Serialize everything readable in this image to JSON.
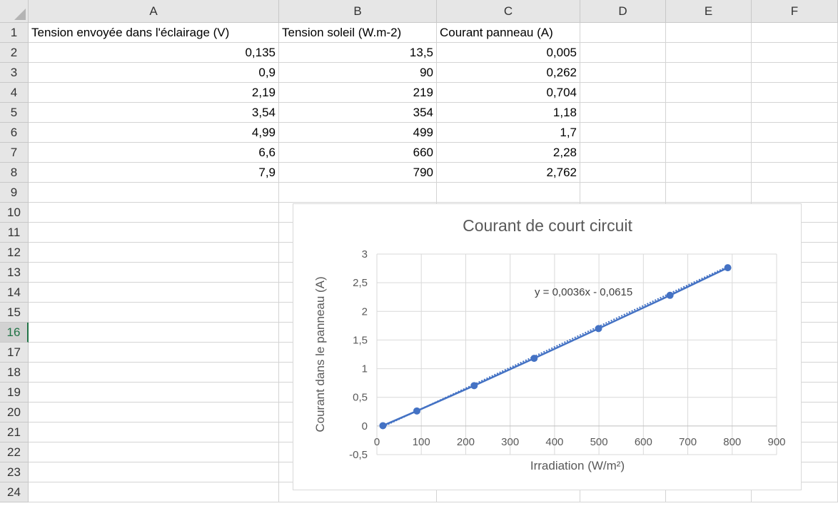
{
  "sheet": {
    "columns": [
      "A",
      "B",
      "C",
      "D",
      "E",
      "F"
    ],
    "rows": [
      "1",
      "2",
      "3",
      "4",
      "5",
      "6",
      "7",
      "8",
      "9",
      "10",
      "11",
      "12",
      "13",
      "14",
      "15",
      "16",
      "17",
      "18",
      "19",
      "20",
      "21",
      "22",
      "23",
      "24"
    ],
    "active_row": "16",
    "headers": [
      "Tension envoyée dans l'éclairage (V)",
      "Tension soleil (W.m-2)",
      "Courant  panneau (A)"
    ],
    "data": [
      [
        "0,135",
        "13,5",
        "0,005"
      ],
      [
        "0,9",
        "90",
        "0,262"
      ],
      [
        "2,19",
        "219",
        "0,704"
      ],
      [
        "3,54",
        "354",
        "1,18"
      ],
      [
        "4,99",
        "499",
        "1,7"
      ],
      [
        "6,6",
        "660",
        "2,28"
      ],
      [
        "7,9",
        "790",
        "2,762"
      ]
    ]
  },
  "chart_data": {
    "type": "scatter",
    "title": "Courant de court circuit",
    "xlabel": "Irradiation (W/m²)",
    "ylabel": "Courant dans le panneau (A)",
    "xlim": [
      0,
      900
    ],
    "ylim": [
      -0.5,
      3
    ],
    "xticks": [
      0,
      100,
      200,
      300,
      400,
      500,
      600,
      700,
      800,
      900
    ],
    "yticks": [
      -0.5,
      0,
      0.5,
      1,
      1.5,
      2,
      2.5,
      3
    ],
    "x_tick_labels": [
      "0",
      "100",
      "200",
      "300",
      "400",
      "500",
      "600",
      "700",
      "800",
      "900"
    ],
    "y_tick_labels": [
      "-0,5",
      "0",
      "0,5",
      "1",
      "1,5",
      "2",
      "2,5",
      "3"
    ],
    "x": [
      13.5,
      90,
      219,
      354,
      499,
      660,
      790
    ],
    "y": [
      0.005,
      0.262,
      0.704,
      1.18,
      1.7,
      2.28,
      2.762
    ],
    "trendline": {
      "slope": 0.0036,
      "intercept": -0.0615,
      "label": "y = 0,0036x - 0,0615"
    },
    "grid": true,
    "series_color": "#4472c4"
  }
}
